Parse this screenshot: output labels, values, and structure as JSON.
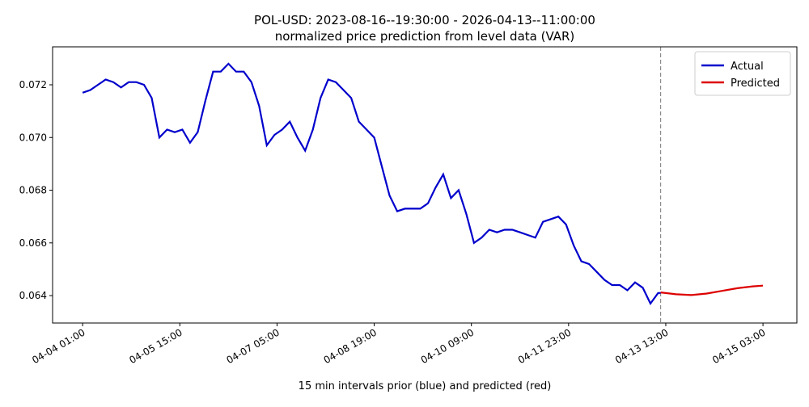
{
  "chart_data": {
    "type": "line",
    "title": "POL-USD: 2023-08-16--19:30:00 - 2026-04-13--11:00:00",
    "subtitle": "normalized price prediction from level data (VAR)",
    "x_label": "15 min intervals prior (blue) and predicted (red)",
    "xlim": [
      "04-03 13:15",
      "04-15 16:15"
    ],
    "xticks": [
      "04-04 01:00",
      "04-05 15:00",
      "04-07 05:00",
      "04-08 19:00",
      "04-10 09:00",
      "04-11 23:00",
      "04-13 13:00",
      "04-15 03:00"
    ],
    "ylim": [
      0.06296,
      0.07344
    ],
    "yticks": [
      0.064,
      0.066,
      0.068,
      {
        "value": 0.07,
        "label": "0.070"
      },
      0.072
    ],
    "grid": false,
    "legend": "upper right",
    "vline": "04-13 11:00",
    "series": [
      {
        "name": "Actual",
        "color": "#0000cc",
        "x": [
          "04-04 01:00",
          "04-04 04:00",
          "04-04 07:00",
          "04-04 10:00",
          "04-04 13:00",
          "04-04 16:00",
          "04-04 19:00",
          "04-04 22:00",
          "04-05 01:00",
          "04-05 04:00",
          "04-05 07:00",
          "04-05 10:00",
          "04-05 13:00",
          "04-05 16:00",
          "04-05 19:00",
          "04-05 22:00",
          "04-06 01:00",
          "04-06 04:00",
          "04-06 07:00",
          "04-06 10:00",
          "04-06 13:00",
          "04-06 16:00",
          "04-06 19:00",
          "04-06 22:00",
          "04-07 01:00",
          "04-07 04:00",
          "04-07 07:00",
          "04-07 10:00",
          "04-07 13:00",
          "04-07 16:00",
          "04-07 19:00",
          "04-07 22:00",
          "04-08 01:00",
          "04-08 04:00",
          "04-08 07:00",
          "04-08 10:00",
          "04-08 13:00",
          "04-08 16:00",
          "04-08 19:00",
          "04-08 22:00",
          "04-09 01:00",
          "04-09 04:00",
          "04-09 07:00",
          "04-09 10:00",
          "04-09 13:00",
          "04-09 16:00",
          "04-09 19:00",
          "04-09 22:00",
          "04-10 01:00",
          "04-10 04:00",
          "04-10 07:00",
          "04-10 10:00",
          "04-10 13:00",
          "04-10 16:00",
          "04-10 19:00",
          "04-10 22:00",
          "04-11 01:00",
          "04-11 04:00",
          "04-11 07:00",
          "04-11 10:00",
          "04-11 13:00",
          "04-11 16:00",
          "04-11 19:00",
          "04-11 22:00",
          "04-12 01:00",
          "04-12 04:00",
          "04-12 07:00",
          "04-12 10:00",
          "04-12 13:00",
          "04-12 16:00",
          "04-12 19:00",
          "04-12 22:00",
          "04-13 01:00",
          "04-13 04:00",
          "04-13 07:00",
          "04-13 10:00",
          "04-13 11:00"
        ],
        "values": [
          0.0717,
          0.0718,
          0.072,
          0.0722,
          0.0721,
          0.0719,
          0.0721,
          0.0721,
          0.072,
          0.0715,
          0.07,
          0.0703,
          0.0702,
          0.0703,
          0.0698,
          0.0702,
          0.0714,
          0.0725,
          0.0725,
          0.0728,
          0.0725,
          0.0725,
          0.0721,
          0.0712,
          0.0697,
          0.0701,
          0.0703,
          0.0706,
          0.07,
          0.0695,
          0.0703,
          0.0715,
          0.0722,
          0.0721,
          0.0718,
          0.0715,
          0.0706,
          0.0703,
          0.07,
          0.0689,
          0.0678,
          0.0672,
          0.0673,
          0.0673,
          0.0673,
          0.0675,
          0.0681,
          0.0686,
          0.0677,
          0.068,
          0.0671,
          0.066,
          0.0662,
          0.0665,
          0.0664,
          0.0665,
          0.0665,
          0.0664,
          0.0663,
          0.0662,
          0.0668,
          0.0669,
          0.067,
          0.0667,
          0.0659,
          0.0653,
          0.0652,
          0.0649,
          0.0646,
          0.0644,
          0.0644,
          0.0642,
          0.0645,
          0.0643,
          0.0637,
          0.0641,
          0.0641
        ]
      },
      {
        "name": "Predicted",
        "color": "#dd0000",
        "x": [
          "04-13 11:00",
          "04-13 17:00",
          "04-13 23:00",
          "04-14 05:00",
          "04-14 11:00",
          "04-14 17:00",
          "04-14 23:00",
          "04-15 03:00"
        ],
        "values": [
          0.06412,
          0.06405,
          0.06402,
          0.06408,
          0.06418,
          0.06428,
          0.06435,
          0.06438
        ]
      }
    ]
  }
}
